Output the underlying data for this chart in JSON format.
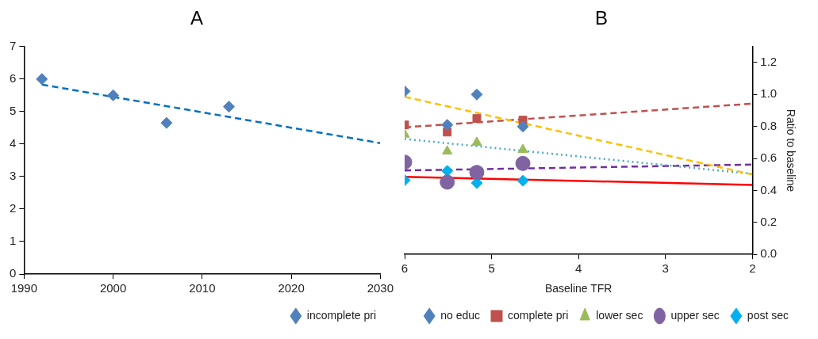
{
  "chart_data": [
    {
      "type": "scatter",
      "title": "A",
      "xlim": [
        1990,
        2030
      ],
      "xticks": [
        1990,
        2000,
        2010,
        2020,
        2030
      ],
      "ylim": [
        0,
        7
      ],
      "yticks": [
        0,
        1,
        2,
        3,
        4,
        5,
        6,
        7
      ],
      "grid": false,
      "legend": "bottom",
      "series": [
        {
          "name": "incomplete pri",
          "color": "#4f81bd",
          "marker": "diamond",
          "x": [
            1992,
            2000,
            2006,
            2013
          ],
          "values": [
            6.0,
            5.5,
            4.65,
            5.15
          ]
        },
        {
          "type": "line",
          "color": "#0070c0",
          "line_style": "dashed",
          "x": [
            1992,
            2030
          ],
          "values": [
            5.83,
            4.03
          ]
        }
      ]
    },
    {
      "type": "scatter",
      "title": "B",
      "xlabel": "Baseline TFR",
      "y2label": "Ratio to baseline",
      "xlim": [
        6,
        2
      ],
      "xticks": [
        6,
        5,
        4,
        3,
        2
      ],
      "y2lim": [
        0,
        1.3
      ],
      "y2ticks": [
        {
          "value": 0,
          "label": "0.0"
        },
        0.2,
        0.4,
        0.6,
        0.8,
        {
          "value": 1,
          "label": "1.0"
        },
        1.2
      ],
      "grid": false,
      "legend": "bottom",
      "series": [
        {
          "name": "no educ",
          "color": "#4f81bd",
          "marker": "diamond",
          "axis": "y2",
          "x": [
            6,
            5.51,
            5.17,
            4.64
          ],
          "values": [
            1.02,
            0.81,
            1.0,
            0.8
          ]
        },
        {
          "name": "complete pri",
          "color": "#c0504d",
          "marker": "square",
          "axis": "y2",
          "x": [
            6,
            5.51,
            5.17,
            4.64
          ],
          "values": [
            0.81,
            0.765,
            0.85,
            0.84
          ]
        },
        {
          "name": "lower sec",
          "color": "#9bbb59",
          "marker": "triangle",
          "axis": "y2",
          "x": [
            6,
            5.51,
            5.17,
            4.64
          ],
          "values": [
            0.75,
            0.645,
            0.7,
            0.655
          ]
        },
        {
          "name": "upper sec",
          "color": "#8064a2",
          "marker": "circle",
          "axis": "y2",
          "x": [
            6,
            5.51,
            5.17,
            4.64
          ],
          "values": [
            0.577,
            0.452,
            0.513,
            0.569
          ]
        },
        {
          "name": "post sec",
          "color": "#00b0f0",
          "marker": "diamond",
          "axis": "y2",
          "x": [
            6,
            5.51,
            5.17,
            4.64
          ],
          "values": [
            0.464,
            0.522,
            0.447,
            0.461
          ]
        },
        {
          "type": "line",
          "color": "#ffc000",
          "line_style": "dashed",
          "axis": "y2",
          "x": [
            6,
            2
          ],
          "values": [
            0.986,
            0.5
          ]
        },
        {
          "type": "line",
          "color": "#c0504d",
          "line_style": "dashed",
          "axis": "y2",
          "x": [
            6,
            2
          ],
          "values": [
            0.795,
            0.943
          ]
        },
        {
          "type": "line",
          "color": "#4bacc6",
          "line_style": "dotted",
          "axis": "y2",
          "x": [
            6,
            2
          ],
          "values": [
            0.722,
            0.504
          ]
        },
        {
          "type": "line",
          "color": "#7030a0",
          "line_style": "dashed",
          "axis": "y2",
          "x": [
            6,
            2
          ],
          "values": [
            0.525,
            0.562
          ]
        },
        {
          "type": "line",
          "color": "#ff0000",
          "line_style": "solid",
          "axis": "y2",
          "x": [
            6,
            2
          ],
          "values": [
            0.485,
            0.435
          ]
        }
      ]
    }
  ]
}
